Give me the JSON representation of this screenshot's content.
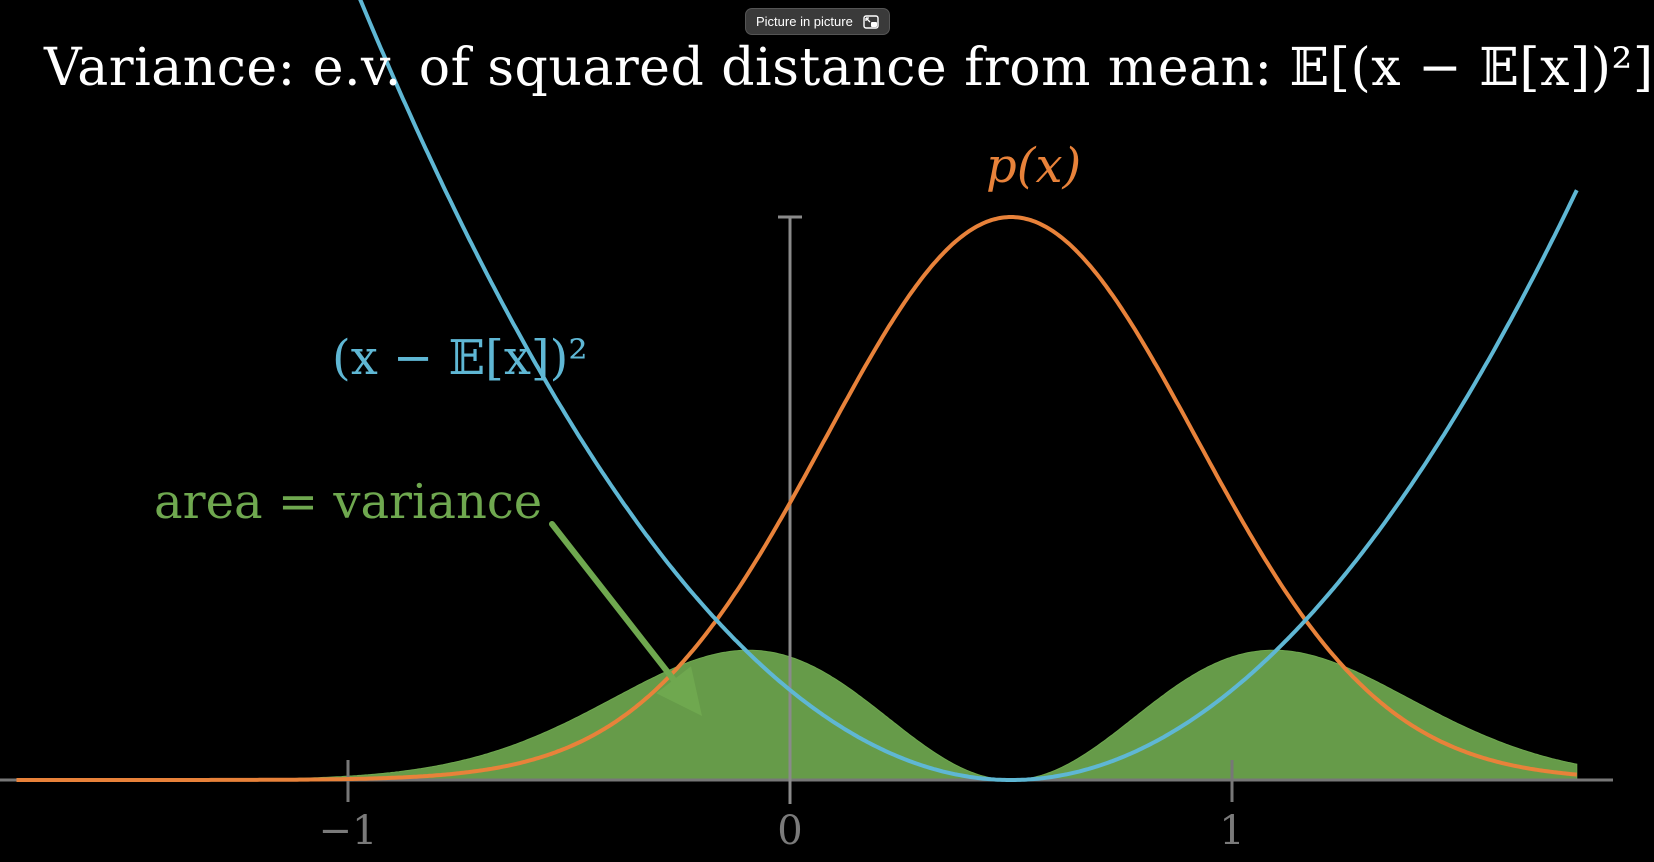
{
  "overlay": {
    "pip_label": "Picture in picture",
    "pip_icon": "picture-in-picture-icon"
  },
  "chart_data": {
    "type": "line",
    "title": "Variance: e.v. of squared distance from mean: 𝔼[(x − 𝔼[x])²]",
    "xlim": [
      -1.75,
      1.78
    ],
    "ticks": [
      {
        "value": -1,
        "label": "−1"
      },
      {
        "value": 0,
        "label": "0"
      },
      {
        "value": 1,
        "label": "1"
      }
    ],
    "mean": 0.5,
    "series": [
      {
        "name": "p(x)",
        "kind": "density",
        "color": "#e8823a",
        "peak": 1.0,
        "sigma": 0.42
      },
      {
        "name": "(x − 𝔼[x])²",
        "kind": "squared-distance",
        "color": "#5fb7d4"
      },
      {
        "name": "area = variance",
        "kind": "product-area",
        "color": "#6fa84f"
      }
    ],
    "labels": {
      "px": "p(x)",
      "sq": "(x − 𝔼[x])²",
      "area": "area = variance"
    }
  }
}
